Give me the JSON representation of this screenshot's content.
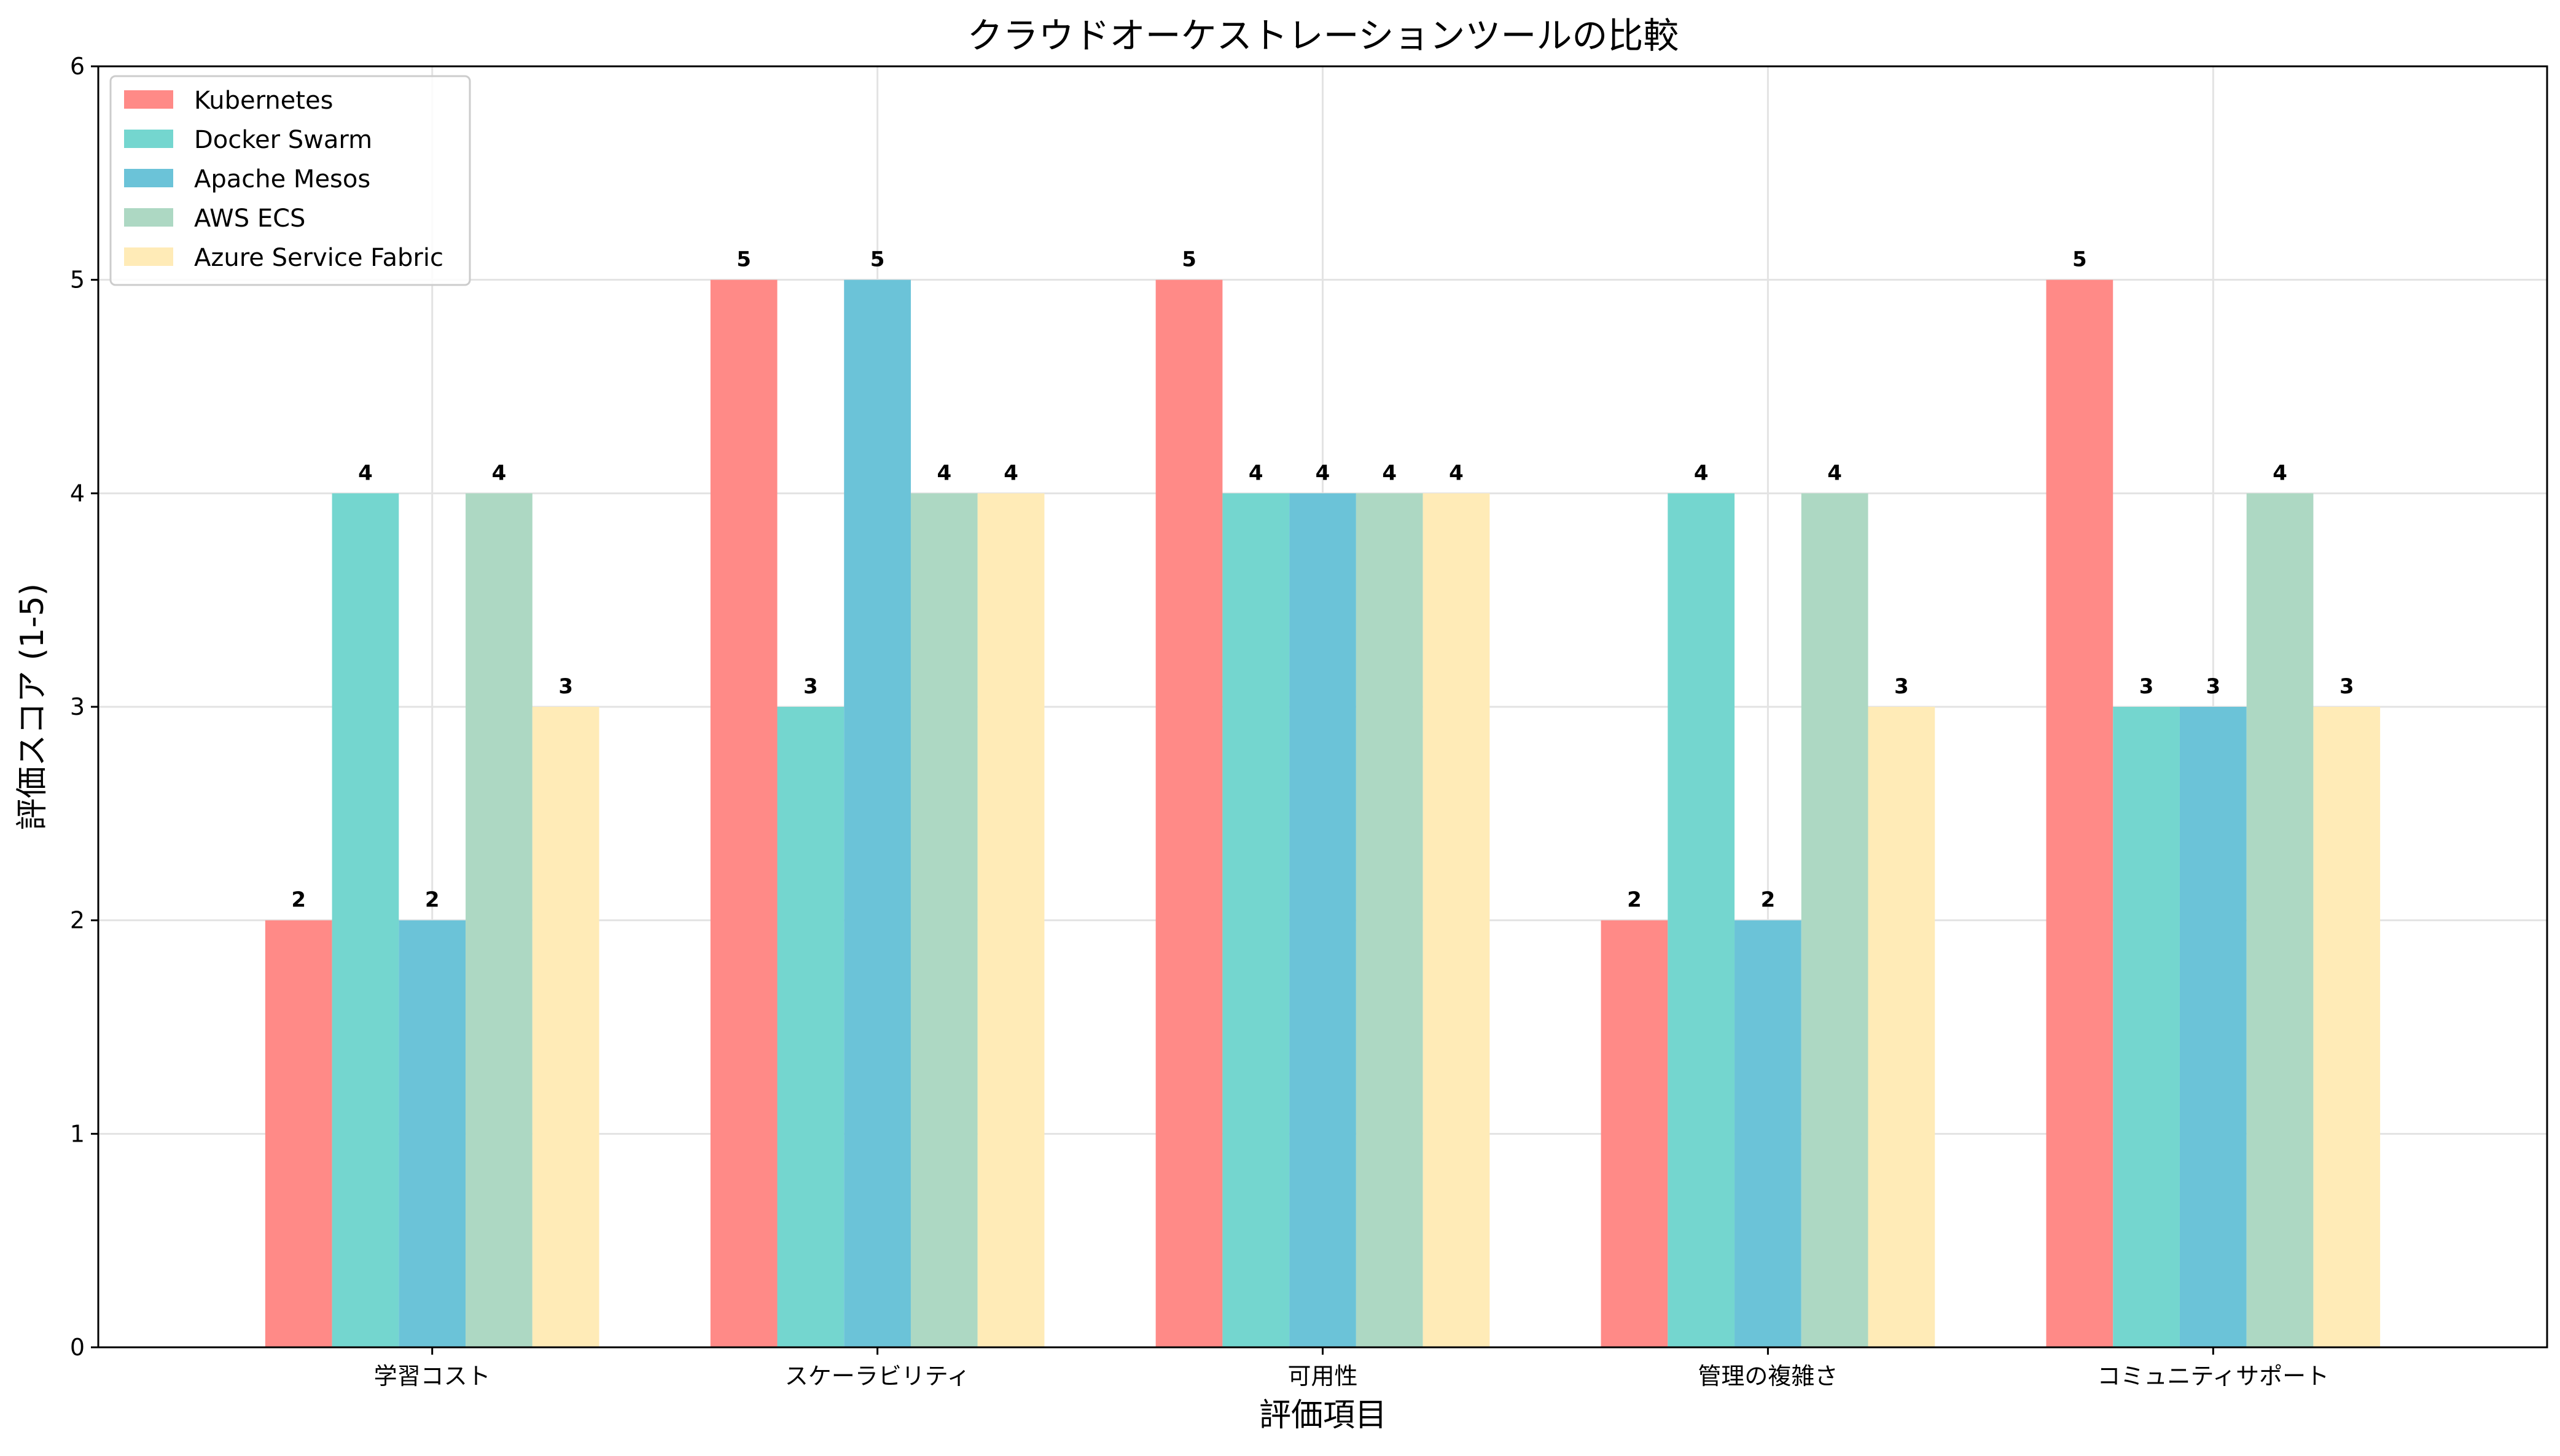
{
  "chart_data": {
    "type": "bar",
    "title": "クラウドオーケストレーションツールの比較",
    "xlabel": "評価項目",
    "ylabel": "評価スコア (1-5)",
    "ylim": [
      0,
      6
    ],
    "yticks": [
      0,
      1,
      2,
      3,
      4,
      5,
      6
    ],
    "grid": true,
    "legend_position": "top-left",
    "categories": [
      "学習コスト",
      "スケーラビリティ",
      "可用性",
      "管理の複雑さ",
      "コミュニティサポート"
    ],
    "series": [
      {
        "name": "Kubernetes",
        "color": "#FF8A87",
        "values": [
          2,
          5,
          5,
          2,
          5
        ]
      },
      {
        "name": "Docker Swarm",
        "color": "#74D6CF",
        "values": [
          4,
          3,
          4,
          4,
          3
        ]
      },
      {
        "name": "Apache Mesos",
        "color": "#6BC3D8",
        "values": [
          2,
          5,
          4,
          2,
          3
        ]
      },
      {
        "name": "AWS ECS",
        "color": "#ADD8C3",
        "values": [
          4,
          4,
          4,
          4,
          4
        ]
      },
      {
        "name": "Azure Service Fabric",
        "color": "#FFEBB7",
        "values": [
          3,
          4,
          4,
          3,
          3
        ]
      }
    ]
  }
}
